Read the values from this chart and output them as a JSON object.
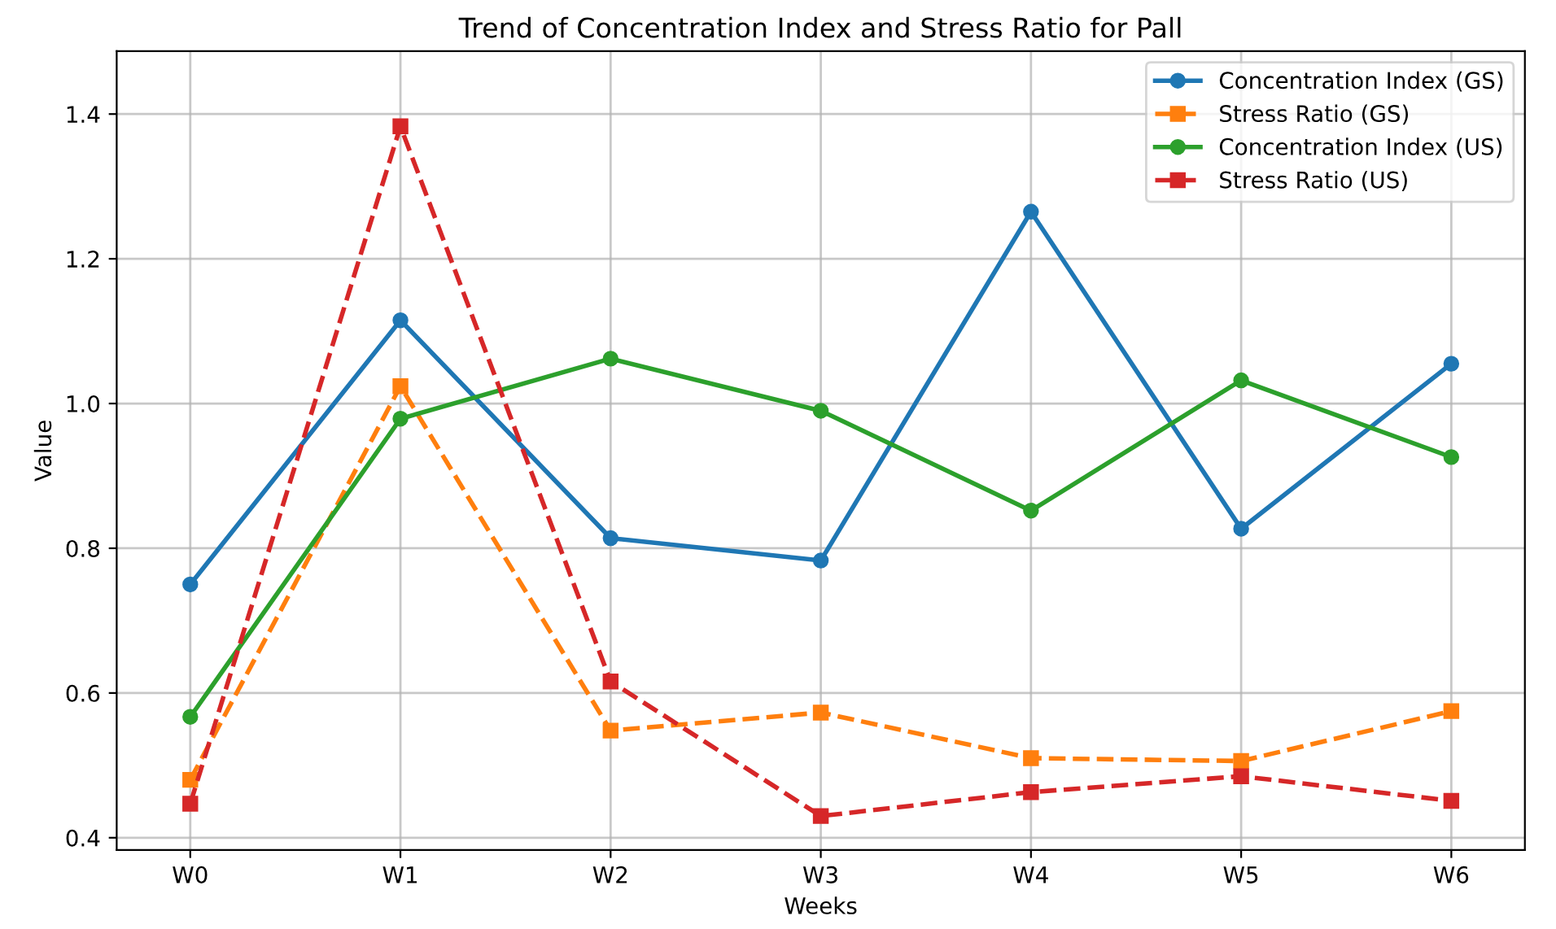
{
  "chart_data": {
    "type": "line",
    "title": "Trend of Concentration Index and Stress Ratio for Pall",
    "xlabel": "Weeks",
    "ylabel": "Value",
    "categories": [
      "W0",
      "W1",
      "W2",
      "W3",
      "W4",
      "W5",
      "W6"
    ],
    "series": [
      {
        "name": "Concentration Index (GS)",
        "color": "#1f77b4",
        "marker": "circle",
        "line_style": "solid",
        "values": [
          0.75,
          1.115,
          0.814,
          0.783,
          1.265,
          0.827,
          1.055
        ]
      },
      {
        "name": "Stress Ratio (GS)",
        "color": "#ff7f0e",
        "marker": "square",
        "line_style": "dashed",
        "values": [
          0.48,
          1.024,
          0.548,
          0.573,
          0.51,
          0.506,
          0.575
        ]
      },
      {
        "name": "Concentration Index (US)",
        "color": "#2ca02c",
        "marker": "circle",
        "line_style": "solid",
        "values": [
          0.567,
          0.979,
          1.062,
          0.99,
          0.852,
          1.032,
          0.926
        ]
      },
      {
        "name": "Stress Ratio (US)",
        "color": "#d62728",
        "marker": "square",
        "line_style": "dashed",
        "values": [
          0.447,
          1.383,
          0.616,
          0.43,
          0.463,
          0.485,
          0.451
        ]
      }
    ],
    "ylim": [
      0.383,
      1.487
    ],
    "yticks": [
      {
        "value": 0.4,
        "label": "0.4"
      },
      {
        "value": 0.6,
        "label": "0.6"
      },
      {
        "value": 0.8,
        "label": "0.8"
      },
      {
        "value": 1.0,
        "label": "1.0"
      },
      {
        "value": 1.2,
        "label": "1.2"
      },
      {
        "value": 1.4,
        "label": "1.4"
      }
    ],
    "grid": true,
    "legend": "top right"
  }
}
